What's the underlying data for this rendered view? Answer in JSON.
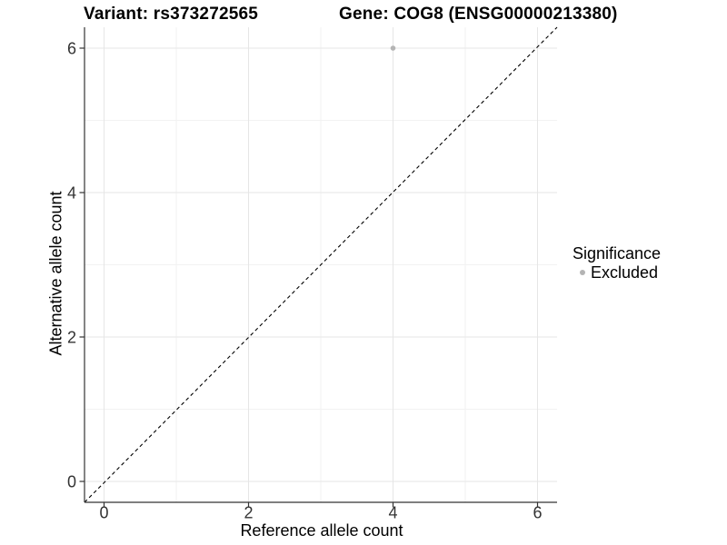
{
  "chart_data": {
    "type": "scatter",
    "title_left": "Variant: rs373272565",
    "title_right": "Gene: COG8 (ENSG00000213380)",
    "xlabel": "Reference allele count",
    "ylabel": "Alternative allele count",
    "xlim": [
      -0.27,
      6.27
    ],
    "ylim": [
      -0.29,
      6.29
    ],
    "xticks": [
      0,
      2,
      4,
      6
    ],
    "yticks": [
      0,
      2,
      4,
      6
    ],
    "xminor": [
      1,
      3,
      5
    ],
    "yminor": [
      1,
      3,
      5
    ],
    "grid": "major-and-minor",
    "reference_line": {
      "equation": "y = x",
      "style": "dashed",
      "color": "#000000"
    },
    "series": [
      {
        "name": "Excluded",
        "color": "#b4b4b4",
        "points": [
          {
            "x": 4,
            "y": 6
          }
        ]
      }
    ],
    "legend": {
      "title": "Significance",
      "position": "right",
      "items": [
        {
          "label": "Excluded",
          "color": "#b4b4b4"
        }
      ]
    }
  },
  "colors": {
    "background": "#ffffff",
    "grid_major": "#e6e6e6",
    "grid_minor": "#f2f2f2",
    "axis_line": "#333333",
    "tick_text": "#333333",
    "title_text": "#000000",
    "point": "#b4b4b4"
  }
}
